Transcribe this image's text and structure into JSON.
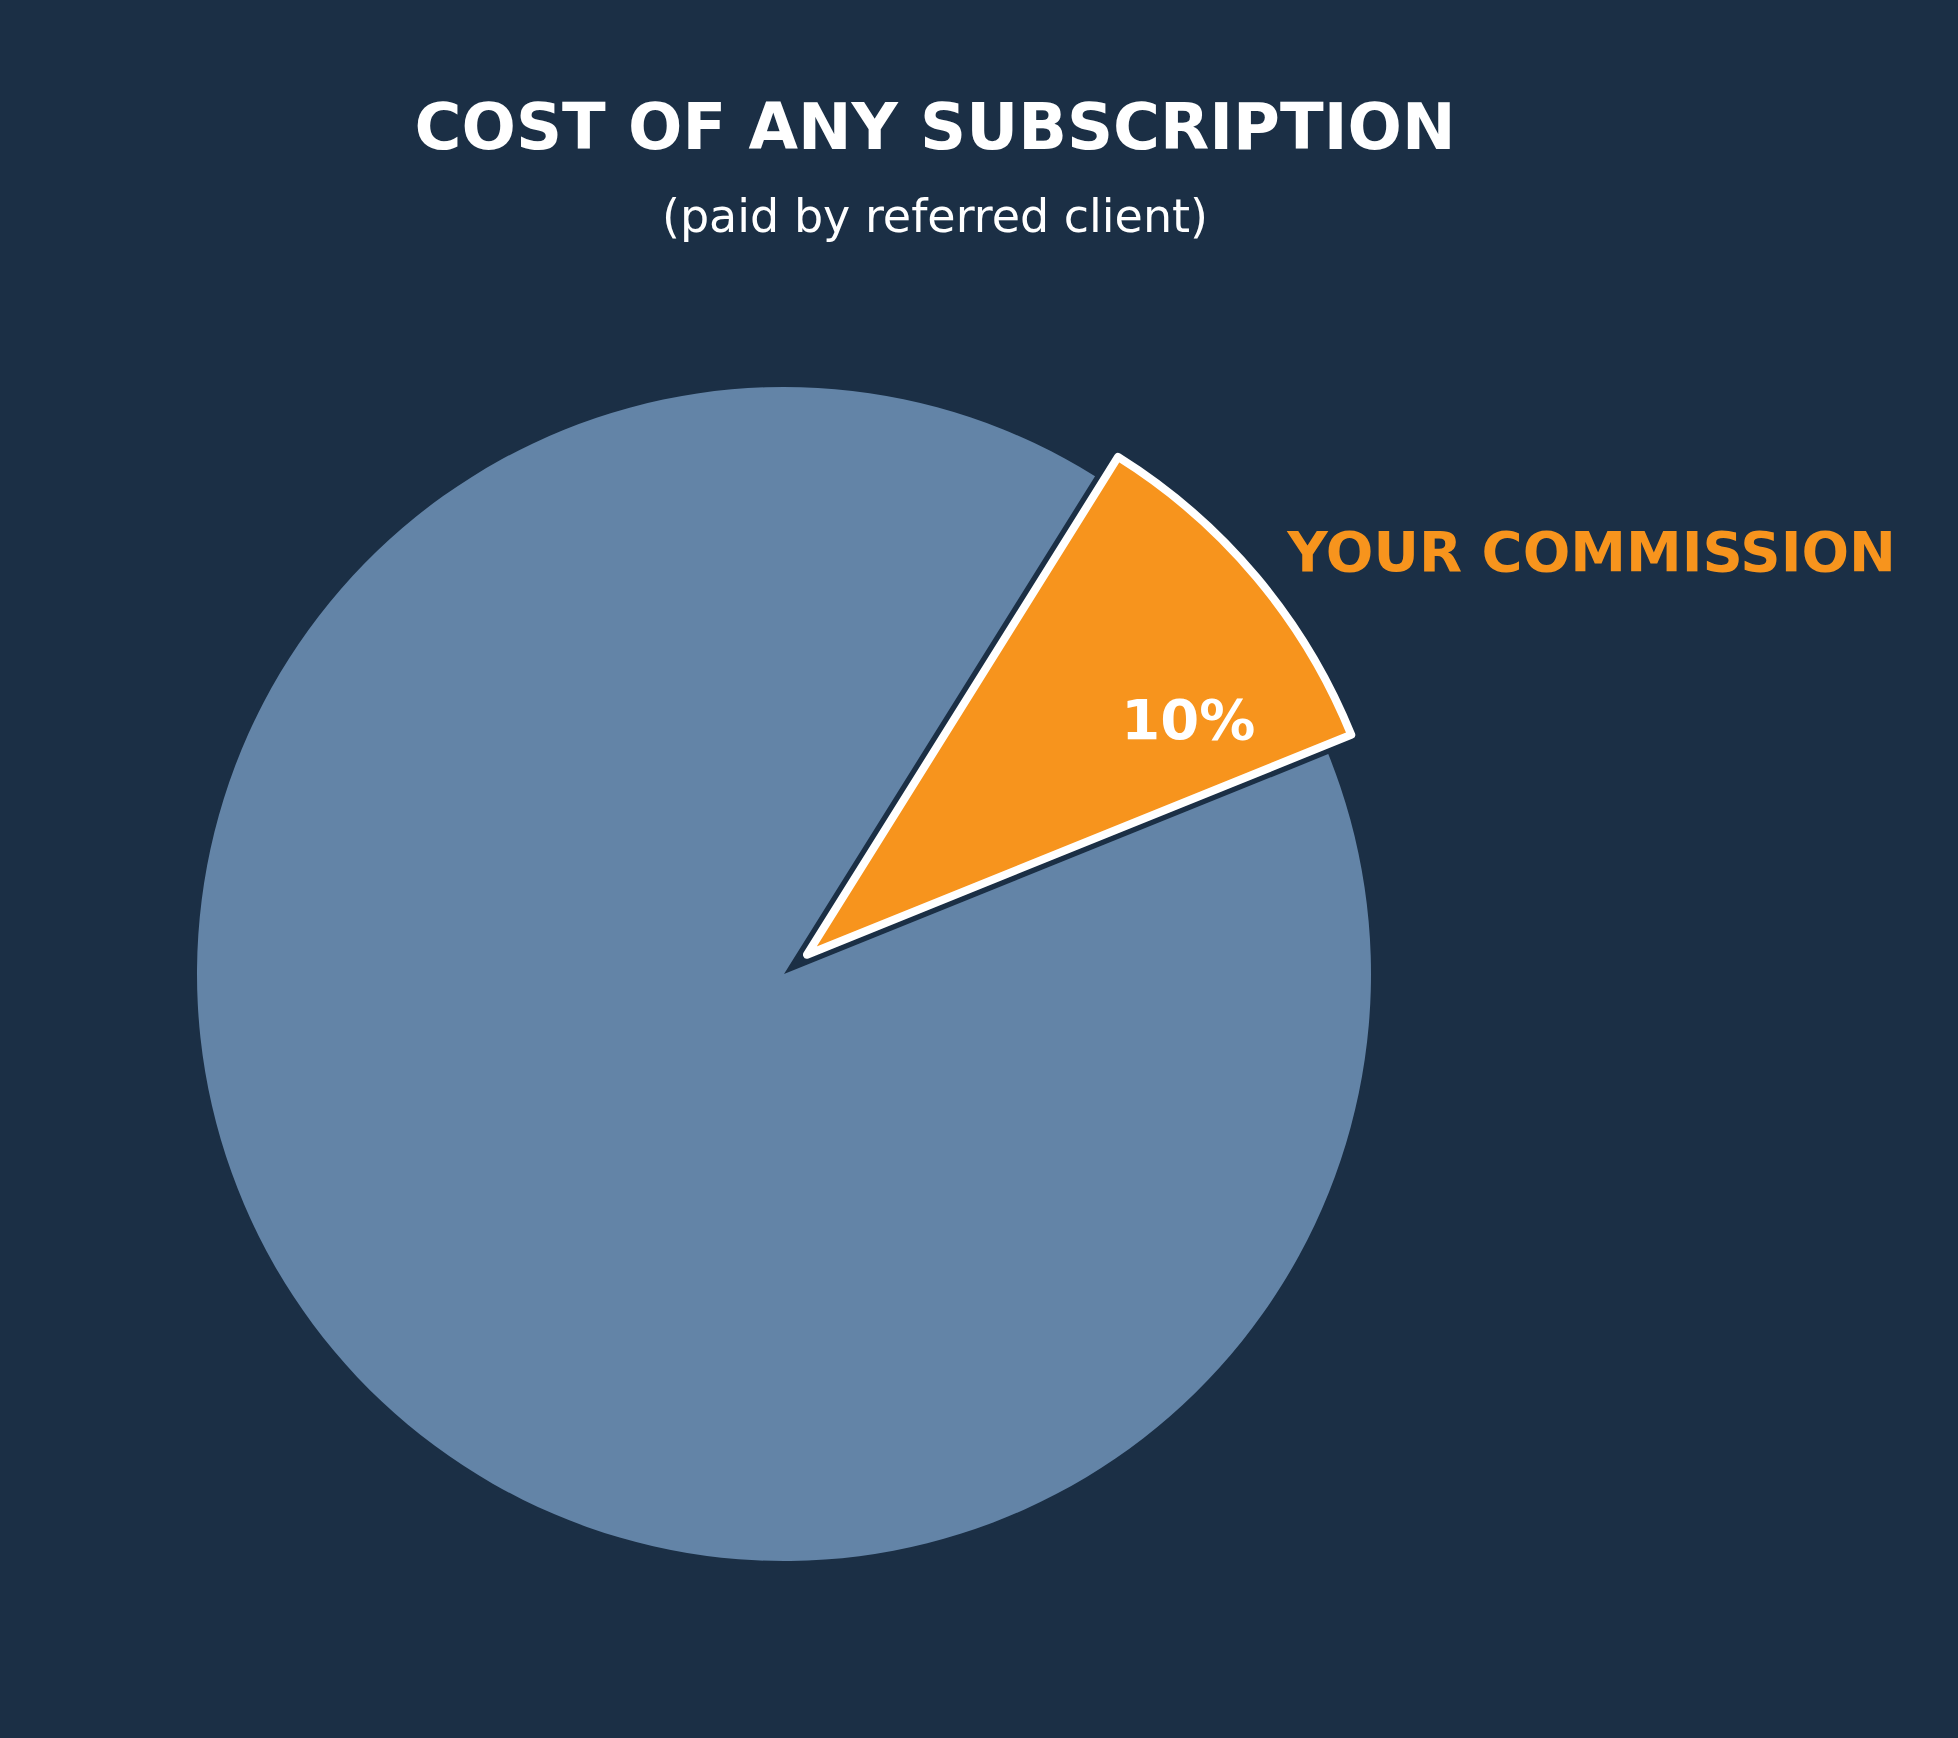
{
  "chart_data": {
    "type": "pie",
    "title": "COST OF ANY SUBSCRIPTION",
    "subtitle": "(paid by referred client)",
    "categories": [
      "YOUR COMMISSION",
      null
    ],
    "values": [
      10,
      90
    ],
    "colors": [
      "#f7941d",
      "#6384a7"
    ],
    "value_labels": [
      "10%",
      null
    ],
    "legend": false
  }
}
